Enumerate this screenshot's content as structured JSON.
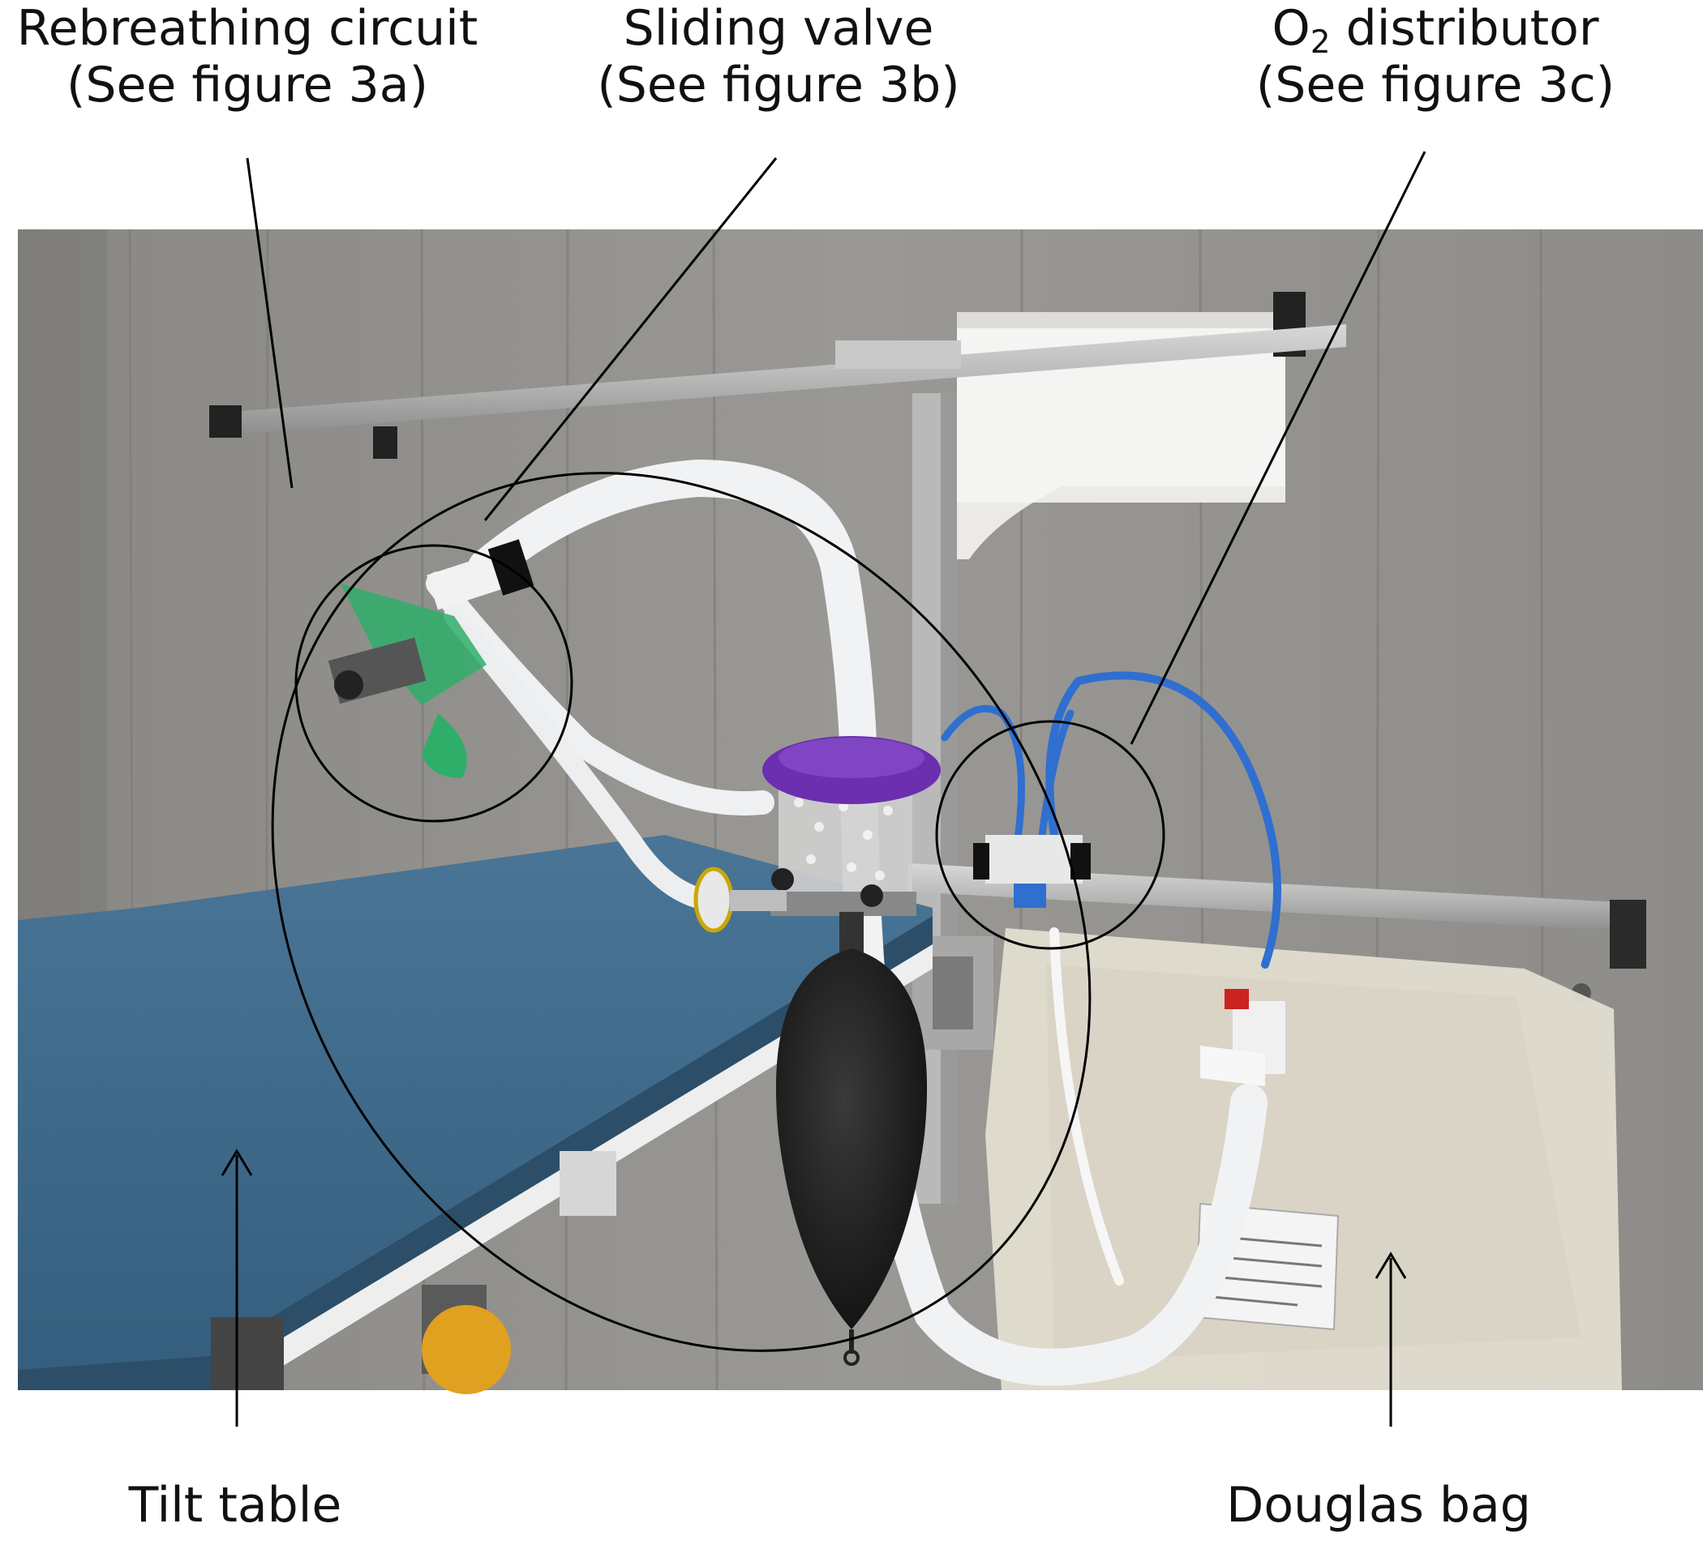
{
  "labels": {
    "rebreathing_circuit": {
      "line1": "Rebreathing circuit",
      "line2": "(See figure 3a)"
    },
    "sliding_valve": {
      "line1": "Sliding valve",
      "line2": "(See figure 3b)"
    },
    "o2_distributor": {
      "prefix": "O",
      "subscript": "2",
      "suffix": " distributor",
      "line2": "(See figure 3c)"
    },
    "tilt_table": "Tilt table",
    "douglas_bag": "Douglas bag"
  },
  "colors": {
    "wall": "#8f8d89",
    "mattress": "#3d6888",
    "hose": "#eef0f2",
    "o2_tube": "#2f6fd0",
    "valve_cap": "#6b2fb0",
    "green_part": "#2fae6a",
    "rubber_bag": "#151515",
    "douglas_bag": "#e3dfd2",
    "annotation_line": "#000000"
  }
}
